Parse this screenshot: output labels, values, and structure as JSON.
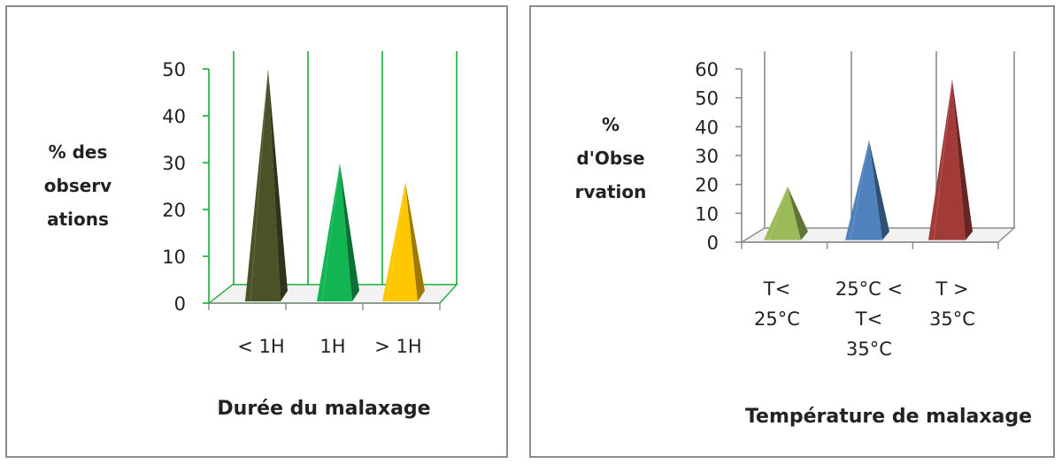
{
  "chart_data": [
    {
      "type": "bar",
      "shape": "pyramid-3d",
      "categories": [
        "< 1H",
        "1H",
        "> 1H"
      ],
      "values": [
        49,
        29,
        25
      ],
      "colors": [
        "#4b5228",
        "#11b552",
        "#ffc700"
      ],
      "ylabel_lines": [
        "% des",
        "observ",
        "ations"
      ],
      "xlabel": "Durée du malaxage",
      "ylim": [
        0,
        50
      ],
      "yticks": [
        "0",
        "10",
        "20",
        "30",
        "40",
        "50"
      ],
      "axis_color": "#1aab3a",
      "grid": true
    },
    {
      "type": "bar",
      "shape": "pyramid-3d",
      "categories": [
        "T< 25°C",
        "25°C < T< 35°C",
        "T > 35°C"
      ],
      "category_lines": [
        [
          "T<",
          "25°C"
        ],
        [
          "25°C <",
          "T<",
          "35°C"
        ],
        [
          "T >",
          "35°C"
        ]
      ],
      "values": [
        18,
        34,
        55
      ],
      "colors": [
        "#9bbb59",
        "#4f81bd",
        "#a23b38"
      ],
      "ylabel_lines": [
        "%",
        "d'Obse",
        "rvation"
      ],
      "xlabel": "Température de malaxage",
      "ylim": [
        0,
        60
      ],
      "yticks": [
        "0",
        "10",
        "20",
        "30",
        "40",
        "50",
        "60"
      ],
      "axis_color": "#8c8c8c",
      "grid": true
    }
  ]
}
